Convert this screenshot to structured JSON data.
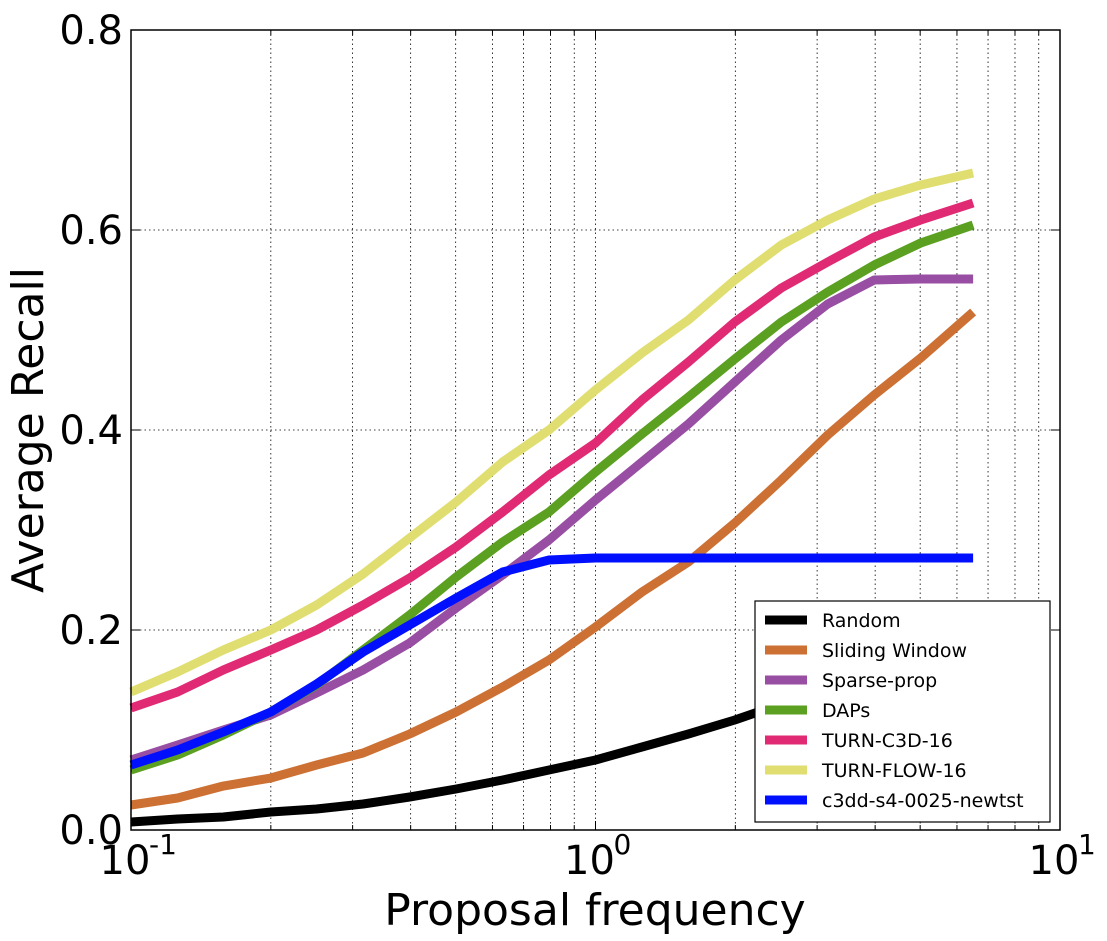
{
  "chart_data": {
    "type": "line",
    "xlabel": "Proposal frequency",
    "ylabel": "Average Recall",
    "xscale": "log",
    "xlim": [
      0.1,
      10
    ],
    "ylim": [
      0.0,
      0.8
    ],
    "grid": true,
    "legend_position": "bottom-right",
    "x_ticks": [
      {
        "base": "10",
        "exp": "-1",
        "value": 0.1
      },
      {
        "base": "10",
        "exp": "0",
        "value": 1
      },
      {
        "base": "10",
        "exp": "1",
        "value": 10
      }
    ],
    "y_ticks": [
      "0.0",
      "0.2",
      "0.4",
      "0.6",
      "0.8"
    ],
    "series": [
      {
        "name": "Random",
        "color": "#000000",
        "x": [
          0.1,
          0.126,
          0.158,
          0.2,
          0.251,
          0.316,
          0.398,
          0.501,
          0.631,
          0.794,
          1.0,
          1.259,
          1.585,
          1.995,
          2.512,
          3.162,
          3.981,
          5.012,
          6.5
        ],
        "y": [
          0.008,
          0.011,
          0.013,
          0.018,
          0.021,
          0.026,
          0.033,
          0.041,
          0.05,
          0.06,
          0.07,
          0.083,
          0.096,
          0.11,
          0.126,
          0.141,
          0.156,
          0.169,
          0.18
        ]
      },
      {
        "name": "Sliding Window",
        "color": "#cc7033",
        "x": [
          0.1,
          0.126,
          0.158,
          0.2,
          0.251,
          0.316,
          0.398,
          0.501,
          0.631,
          0.794,
          1.0,
          1.259,
          1.585,
          1.995,
          2.512,
          3.162,
          3.981,
          5.012,
          6.5
        ],
        "y": [
          0.025,
          0.032,
          0.044,
          0.052,
          0.065,
          0.077,
          0.096,
          0.118,
          0.143,
          0.17,
          0.203,
          0.238,
          0.268,
          0.307,
          0.35,
          0.395,
          0.435,
          0.472,
          0.518
        ]
      },
      {
        "name": "Sparse-prop",
        "color": "#984ea3",
        "x": [
          0.1,
          0.126,
          0.158,
          0.2,
          0.251,
          0.316,
          0.398,
          0.501,
          0.631,
          0.794,
          1.0,
          1.259,
          1.585,
          1.995,
          2.512,
          3.162,
          3.981,
          5.012,
          6.5
        ],
        "y": [
          0.07,
          0.085,
          0.1,
          0.115,
          0.137,
          0.16,
          0.187,
          0.222,
          0.255,
          0.29,
          0.33,
          0.368,
          0.406,
          0.448,
          0.49,
          0.526,
          0.55,
          0.551,
          0.551
        ]
      },
      {
        "name": "DAPs",
        "color": "#5ba020",
        "x": [
          0.1,
          0.126,
          0.158,
          0.2,
          0.251,
          0.316,
          0.398,
          0.501,
          0.631,
          0.794,
          1.0,
          1.259,
          1.585,
          1.995,
          2.512,
          3.162,
          3.981,
          5.012,
          6.5
        ],
        "y": [
          0.06,
          0.075,
          0.095,
          0.118,
          0.145,
          0.18,
          0.215,
          0.253,
          0.288,
          0.318,
          0.358,
          0.396,
          0.433,
          0.471,
          0.508,
          0.538,
          0.565,
          0.587,
          0.605
        ]
      },
      {
        "name": "TURN-C3D-16",
        "color": "#e02a74",
        "x": [
          0.1,
          0.126,
          0.158,
          0.2,
          0.251,
          0.316,
          0.398,
          0.501,
          0.631,
          0.794,
          1.0,
          1.259,
          1.585,
          1.995,
          2.512,
          3.162,
          3.981,
          5.012,
          6.5
        ],
        "y": [
          0.122,
          0.138,
          0.16,
          0.18,
          0.2,
          0.225,
          0.252,
          0.283,
          0.318,
          0.355,
          0.387,
          0.43,
          0.468,
          0.508,
          0.542,
          0.568,
          0.593,
          0.61,
          0.627
        ]
      },
      {
        "name": "TURN-FLOW-16",
        "color": "#e0de70",
        "x": [
          0.1,
          0.126,
          0.158,
          0.2,
          0.251,
          0.316,
          0.398,
          0.501,
          0.631,
          0.794,
          1.0,
          1.259,
          1.585,
          1.995,
          2.512,
          3.162,
          3.981,
          5.012,
          6.5
        ],
        "y": [
          0.138,
          0.158,
          0.18,
          0.2,
          0.225,
          0.256,
          0.292,
          0.328,
          0.368,
          0.4,
          0.44,
          0.477,
          0.51,
          0.55,
          0.585,
          0.61,
          0.631,
          0.645,
          0.657
        ]
      },
      {
        "name": "c3dd-s4-0025-newtst",
        "color": "#0010ff",
        "x": [
          0.1,
          0.126,
          0.158,
          0.2,
          0.251,
          0.316,
          0.398,
          0.501,
          0.631,
          0.794,
          1.0,
          1.259,
          1.585,
          1.995,
          2.512,
          3.162,
          3.981,
          5.012,
          6.5
        ],
        "y": [
          0.065,
          0.08,
          0.098,
          0.118,
          0.146,
          0.178,
          0.205,
          0.232,
          0.258,
          0.27,
          0.272,
          0.272,
          0.272,
          0.272,
          0.272,
          0.272,
          0.272,
          0.272,
          0.272
        ]
      }
    ]
  }
}
